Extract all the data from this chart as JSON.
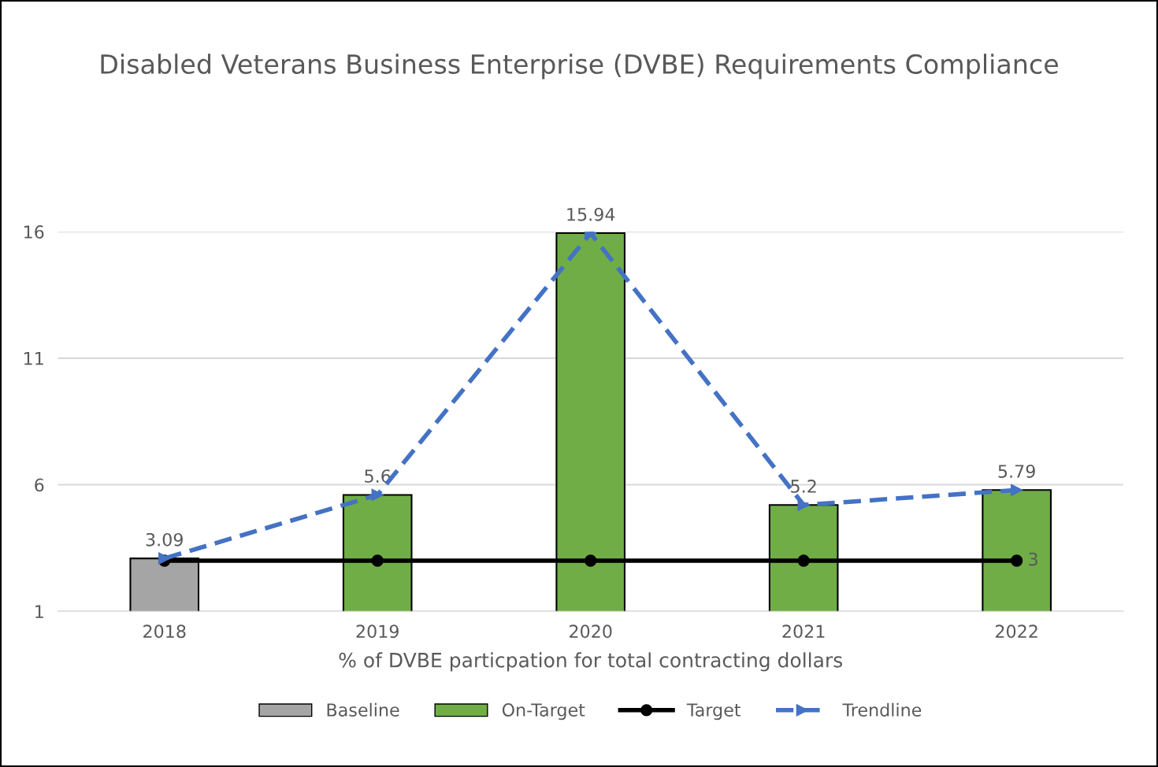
{
  "chart_data": {
    "type": "bar",
    "title": "Disabled Veterans Business Enterprise (DVBE) Requirements Compliance",
    "xlabel": "% of DVBE particpation for total contracting dollars",
    "categories": [
      "2018",
      "2019",
      "2020",
      "2021",
      "2022"
    ],
    "series": [
      {
        "name": "Baseline",
        "color": "#a5a5a5",
        "values": [
          3.09,
          null,
          null,
          null,
          null
        ],
        "data_labels": true
      },
      {
        "name": "On-Target",
        "color": "#70ad47",
        "values": [
          null,
          5.6,
          15.94,
          5.2,
          5.79
        ],
        "data_labels": true
      },
      {
        "name": "Target",
        "type": "line",
        "color": "#000000",
        "values": [
          3,
          3,
          3,
          3,
          3
        ],
        "marker": "circle",
        "line_style": "solid",
        "value_labels": [
          null,
          null,
          null,
          null,
          "3"
        ]
      },
      {
        "name": "Trendline",
        "type": "line",
        "color": "#4472c4",
        "values": [
          3.09,
          5.6,
          15.94,
          5.2,
          5.79
        ],
        "marker": "triangle",
        "line_style": "dashed"
      }
    ],
    "ylim": [
      1,
      16
    ],
    "yticks": [
      1,
      6,
      11,
      16
    ],
    "grid": "y",
    "legend": "bottom"
  }
}
